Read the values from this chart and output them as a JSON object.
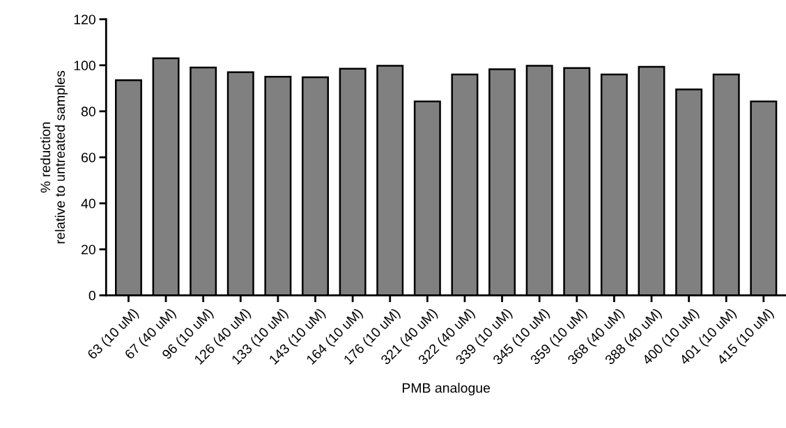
{
  "chart_data": {
    "type": "bar",
    "xlabel": "PMB analogue",
    "ylabel": "% reduction\nrelative to untreated samples",
    "categories": [
      "63 (10 uM)",
      "67 (40 uM)",
      "96 (10 uM)",
      "126 (40 uM)",
      "133 (10 uM)",
      "143 (10 uM)",
      "164 (10 uM)",
      "176 (10 uM)",
      "321 (40 uM)",
      "322 (40 uM)",
      "339 (10 uM)",
      "345 (10 uM)",
      "359 (10 uM)",
      "368 (40 uM)",
      "388 (40 uM)",
      "400 (10 uM)",
      "401 (10 uM)",
      "415 (10 uM)"
    ],
    "values": [
      93.5,
      103,
      99,
      97,
      95,
      94.8,
      98.5,
      99.8,
      84.3,
      96,
      98.3,
      99.8,
      98.8,
      96,
      99.3,
      89.5,
      96,
      84.3
    ],
    "color": "#808080",
    "ylim": [
      0,
      120
    ],
    "yticks": [
      0,
      20,
      40,
      60,
      80,
      100,
      120
    ],
    "grid": false,
    "legend": false
  }
}
